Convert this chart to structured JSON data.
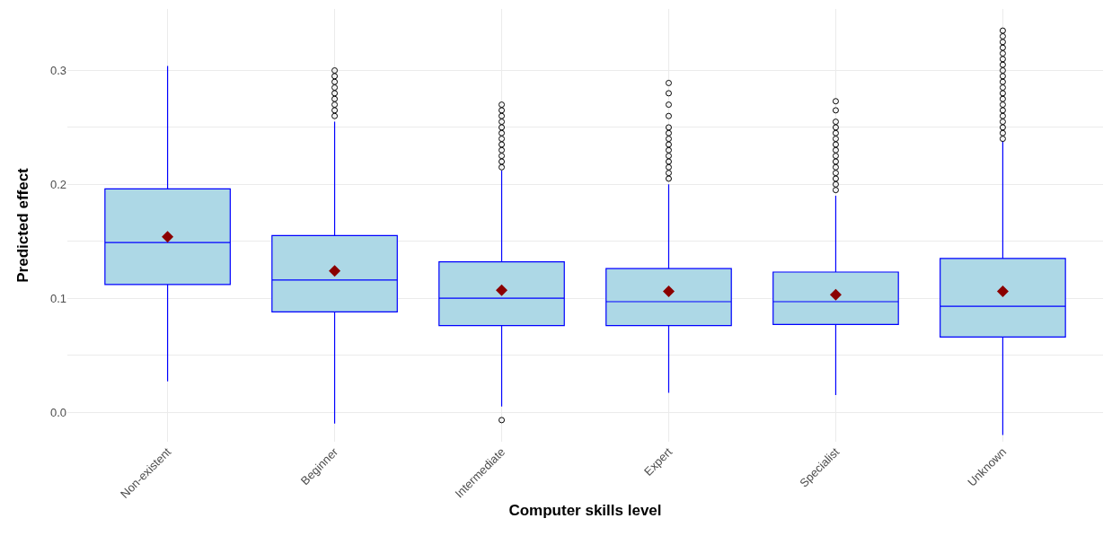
{
  "chart_data": {
    "type": "box",
    "xlabel": "Computer skills level",
    "ylabel": "Predicted effect",
    "categories": [
      "Non-existent",
      "Beginner",
      "Intermediate",
      "Expert",
      "Specialist",
      "Unknown"
    ],
    "series": [
      {
        "color": "#add8e6",
        "boxes": [
          {
            "low": 0.027,
            "q1": 0.112,
            "median": 0.149,
            "q3": 0.196,
            "high": 0.304,
            "mean": 0.154
          },
          {
            "low": -0.01,
            "q1": 0.088,
            "median": 0.116,
            "q3": 0.155,
            "high": 0.255,
            "mean": 0.124,
            "outliers": [
              0.26,
              0.265,
              0.27,
              0.275,
              0.28,
              0.285,
              0.29,
              0.295,
              0.3
            ]
          },
          {
            "low": 0.005,
            "q1": 0.076,
            "median": 0.1,
            "q3": 0.132,
            "high": 0.212,
            "mean": 0.107,
            "outliers": [
              -0.007,
              0.215,
              0.22,
              0.225,
              0.23,
              0.235,
              0.24,
              0.245,
              0.25,
              0.255,
              0.26,
              0.265,
              0.27
            ]
          },
          {
            "low": 0.017,
            "q1": 0.076,
            "median": 0.097,
            "q3": 0.126,
            "high": 0.2,
            "mean": 0.106,
            "outliers": [
              0.205,
              0.21,
              0.215,
              0.22,
              0.225,
              0.23,
              0.235,
              0.24,
              0.245,
              0.25,
              0.26,
              0.27,
              0.28,
              0.289
            ]
          },
          {
            "low": 0.015,
            "q1": 0.077,
            "median": 0.097,
            "q3": 0.123,
            "high": 0.19,
            "mean": 0.103,
            "outliers": [
              0.195,
              0.2,
              0.205,
              0.21,
              0.215,
              0.22,
              0.225,
              0.23,
              0.235,
              0.24,
              0.245,
              0.25,
              0.255,
              0.265,
              0.273
            ]
          },
          {
            "low": -0.02,
            "q1": 0.066,
            "median": 0.093,
            "q3": 0.135,
            "high": 0.238,
            "mean": 0.106,
            "outliers": [
              0.24,
              0.245,
              0.25,
              0.255,
              0.26,
              0.265,
              0.27,
              0.275,
              0.28,
              0.285,
              0.29,
              0.295,
              0.3,
              0.305,
              0.31,
              0.315,
              0.32,
              0.325,
              0.33,
              0.335
            ]
          }
        ]
      }
    ],
    "ylim": [
      -0.026,
      0.354
    ],
    "yticks": [
      {
        "value": 0,
        "label": "0.0"
      },
      {
        "value": 0.05,
        "label": null
      },
      0.1,
      {
        "value": 0.15,
        "label": null
      },
      0.2,
      {
        "value": 0.25,
        "label": null
      },
      0.3
    ],
    "grid": true
  }
}
